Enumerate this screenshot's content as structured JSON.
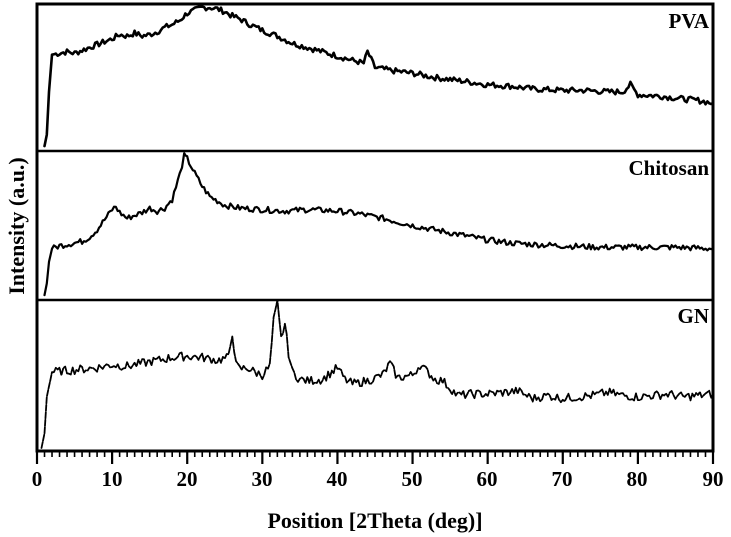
{
  "chart_data": {
    "type": "line",
    "title": "",
    "xlabel": "Position [2Theta (deg)]",
    "ylabel": "Intensity (a.u.)",
    "xlim": [
      0,
      90
    ],
    "xticks": [
      0,
      10,
      20,
      30,
      40,
      50,
      60,
      70,
      80,
      90
    ],
    "xtick_labels": [
      "0",
      "10",
      "20",
      "30",
      "40",
      "50",
      "60",
      "70",
      "80",
      "90"
    ],
    "minor_tick_step": 1,
    "grid": false,
    "legend": "panel labels at upper-right of each stacked panel",
    "layout": "three vertically stacked panels sharing x-axis",
    "series": [
      {
        "name": "PVA",
        "panel": 1,
        "ylim": [
          0,
          100
        ],
        "x": [
          1.0,
          1.3,
          1.6,
          2.0,
          3,
          4,
          5,
          6,
          7,
          8,
          9,
          10,
          11,
          12,
          13,
          14,
          15,
          16,
          17,
          18,
          19,
          20,
          21,
          22,
          23,
          24,
          25,
          26,
          27,
          28,
          30,
          32,
          34,
          36,
          38,
          40,
          42,
          43.5,
          44,
          45,
          47,
          50,
          53,
          56,
          60,
          63,
          66,
          70,
          73,
          76,
          78,
          79,
          80,
          83,
          86,
          88,
          90
        ],
        "values": [
          2,
          10,
          40,
          66,
          67,
          68,
          67,
          69,
          71,
          73,
          75,
          77,
          80,
          79,
          81,
          79,
          80,
          82,
          85,
          87,
          90,
          95,
          97,
          99,
          99,
          98,
          96,
          93,
          91,
          88,
          83,
          79,
          74,
          71,
          68,
          65,
          62,
          60,
          68,
          57,
          55,
          53,
          50,
          48,
          45,
          44,
          42,
          41,
          41,
          40,
          40,
          45,
          38,
          37,
          35,
          34,
          32
        ]
      },
      {
        "name": "Chitosan",
        "panel": 2,
        "ylim": [
          0,
          100
        ],
        "x": [
          1.0,
          1.3,
          1.6,
          2.0,
          3,
          4,
          5,
          6,
          7,
          8,
          9,
          10,
          10.5,
          11,
          12,
          13,
          14,
          15,
          16,
          17,
          18,
          19,
          19.6,
          20,
          21,
          22,
          23,
          24,
          25,
          27,
          30,
          33,
          36,
          40,
          43,
          46,
          50,
          53,
          56,
          60,
          63,
          66,
          70,
          75,
          80,
          85,
          90
        ],
        "values": [
          2,
          10,
          25,
          34,
          36,
          37,
          38,
          39,
          42,
          47,
          54,
          61,
          63,
          59,
          55,
          57,
          59,
          62,
          60,
          62,
          68,
          85,
          98,
          96,
          86,
          77,
          70,
          67,
          64,
          62,
          61,
          60,
          61,
          60,
          58,
          55,
          50,
          47,
          44,
          40,
          38,
          37,
          36,
          35,
          35,
          35,
          34
        ]
      },
      {
        "name": "GN",
        "panel": 3,
        "ylim": [
          0,
          100
        ],
        "x": [
          0.6,
          1.0,
          1.3,
          2.0,
          4,
          6,
          8,
          10,
          12,
          14,
          16,
          18,
          20,
          22,
          24,
          25.5,
          26,
          26.5,
          27,
          28,
          29,
          30,
          31,
          31.5,
          32,
          32.5,
          33,
          33.5,
          34,
          35,
          36,
          38,
          40,
          41,
          42,
          44,
          46,
          47,
          48,
          50,
          51,
          53,
          54,
          56,
          58,
          60,
          62,
          64,
          66,
          68,
          70,
          72,
          74,
          76,
          78,
          80,
          82,
          84,
          86,
          88,
          90
        ],
        "values": [
          0,
          10,
          35,
          52,
          53,
          54,
          55,
          57,
          56,
          58,
          60,
          62,
          63,
          62,
          60,
          62,
          79,
          57,
          54,
          55,
          52,
          50,
          56,
          87,
          99,
          75,
          85,
          65,
          52,
          47,
          46,
          47,
          55,
          47,
          44,
          46,
          50,
          58,
          48,
          50,
          57,
          47,
          46,
          36,
          37,
          37,
          38,
          39,
          34,
          36,
          34,
          35,
          36,
          38,
          36,
          35,
          36,
          37,
          35,
          36,
          37
        ]
      }
    ]
  },
  "axis": {
    "xlabel": "Position [2Theta (deg)]",
    "ylabel": "Intensity (a.u.)",
    "xtick_labels": [
      "0",
      "10",
      "20",
      "30",
      "40",
      "50",
      "60",
      "70",
      "80",
      "90"
    ]
  },
  "panels": {
    "pva_label": "PVA",
    "chitosan_label": "Chitosan",
    "gn_label": "GN"
  },
  "colors": {
    "line": "#000000",
    "background": "#ffffff",
    "frame": "#000000"
  }
}
